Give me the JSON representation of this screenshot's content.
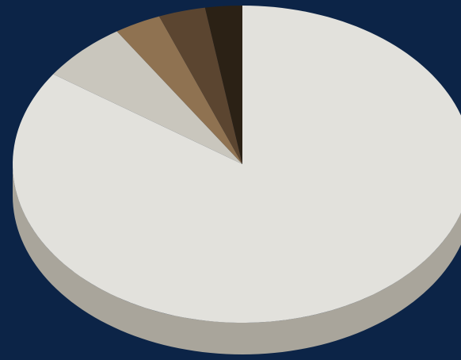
{
  "chart_data": {
    "type": "pie",
    "style": "3d-tilted",
    "values": [
      84.6,
      6.2,
      3.3,
      3.3,
      2.6
    ],
    "colors": [
      "#e2e1dc",
      "#c9c6bd",
      "#8f7251",
      "#5b4530",
      "#2b2115"
    ],
    "side_colors": [
      "#a9a59b",
      "#928f87",
      "#6a5440",
      "#44331f",
      "#201810"
    ],
    "start_angle_deg": 90,
    "direction": "clockwise",
    "legend": "none",
    "title": ""
  },
  "colors": {
    "background": "#0c2447"
  }
}
